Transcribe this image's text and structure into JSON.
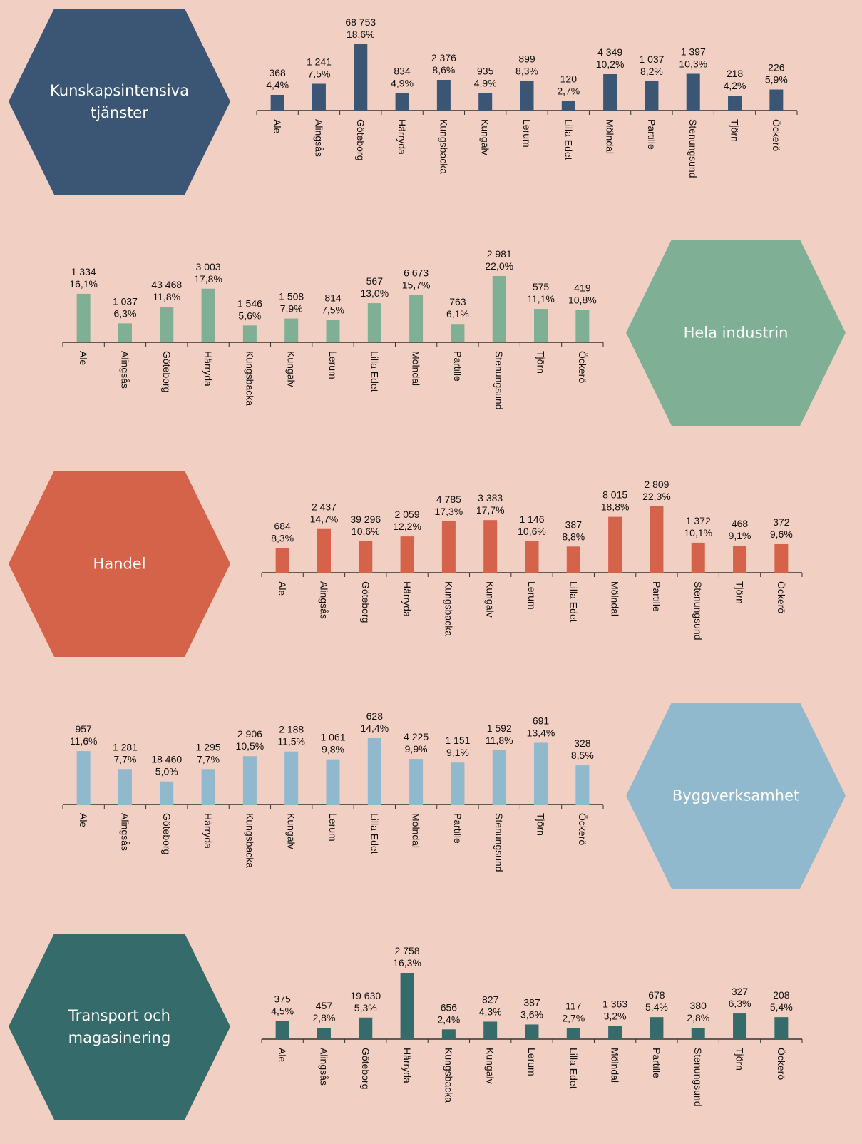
{
  "chart_data": [
    {
      "type": "bar",
      "title": [
        "Kunskapsintensiva",
        "tjänster"
      ],
      "color": "#3a5674",
      "categories": [
        "Ale",
        "Alingsås",
        "Göteborg",
        "Härryda",
        "Kungsbacka",
        "Kungälv",
        "Lerum",
        "Lilla Edet",
        "Mölndal",
        "Partille",
        "Stenungsund",
        "Tjörn",
        "Öckerö"
      ],
      "values": [
        4.4,
        7.5,
        18.6,
        4.9,
        8.6,
        4.9,
        8.3,
        2.7,
        10.2,
        8.2,
        10.3,
        4.2,
        5.9
      ],
      "value_labels": [
        "4,4%",
        "7,5%",
        "18,6%",
        "4,9%",
        "8,6%",
        "4,9%",
        "8,3%",
        "2,7%",
        "10,2%",
        "8,2%",
        "10,3%",
        "4,2%",
        "5,9%"
      ],
      "counts": [
        368,
        1241,
        68753,
        834,
        2376,
        935,
        899,
        120,
        4349,
        1037,
        1397,
        218,
        226
      ],
      "count_labels": [
        "368",
        "1 241",
        "68 753",
        "834",
        "2 376",
        "935",
        "899",
        "120",
        "4 349",
        "1 037",
        "1 397",
        "218",
        "226"
      ]
    },
    {
      "type": "bar",
      "title": [
        "Hela industrin"
      ],
      "color": "#7fb096",
      "categories": [
        "Ale",
        "Alingsås",
        "Göteborg",
        "Härryda",
        "Kungsbacka",
        "Kungälv",
        "Lerum",
        "Lilla Edet",
        "Mölndal",
        "Partille",
        "Stenungsund",
        "Tjörn",
        "Öckerö"
      ],
      "values": [
        16.1,
        6.3,
        11.8,
        17.8,
        5.6,
        7.9,
        7.5,
        13.0,
        15.7,
        6.1,
        22.0,
        11.1,
        10.8
      ],
      "value_labels": [
        "16,1%",
        "6,3%",
        "11,8%",
        "17,8%",
        "5,6%",
        "7,9%",
        "7,5%",
        "13,0%",
        "15,7%",
        "6,1%",
        "22,0%",
        "11,1%",
        "10,8%"
      ],
      "counts": [
        1334,
        1037,
        43468,
        3003,
        1546,
        1508,
        814,
        567,
        6673,
        763,
        2981,
        575,
        419
      ],
      "count_labels": [
        "1 334",
        "1 037",
        "43 468",
        "3 003",
        "1 546",
        "1 508",
        "814",
        "567",
        "6 673",
        "763",
        "2 981",
        "575",
        "419"
      ]
    },
    {
      "type": "bar",
      "title": [
        "Handel"
      ],
      "color": "#d5634a",
      "categories": [
        "Ale",
        "Alingsås",
        "Göteborg",
        "Härryda",
        "Kungsbacka",
        "Kungälv",
        "Lerum",
        "Lilla Edet",
        "Mölndal",
        "Partille",
        "Stenungsund",
        "Tjörn",
        "Öckerö"
      ],
      "values": [
        8.3,
        14.7,
        10.6,
        12.2,
        17.3,
        17.7,
        10.6,
        8.8,
        18.8,
        22.3,
        10.1,
        9.1,
        9.6
      ],
      "value_labels": [
        "8,3%",
        "14,7%",
        "10,6%",
        "12,2%",
        "17,3%",
        "17,7%",
        "10,6%",
        "8,8%",
        "18,8%",
        "22,3%",
        "10,1%",
        "9,1%",
        "9,6%"
      ],
      "counts": [
        684,
        2437,
        39296,
        2059,
        4785,
        3383,
        1146,
        387,
        8015,
        2809,
        1372,
        468,
        372
      ],
      "count_labels": [
        "684",
        "2 437",
        "39 296",
        "2 059",
        "4 785",
        "3 383",
        "1 146",
        "387",
        "8 015",
        "2 809",
        "1 372",
        "468",
        "372"
      ]
    },
    {
      "type": "bar",
      "title": [
        "Byggverksamhet"
      ],
      "color": "#90b9ce",
      "categories": [
        "Ale",
        "Alingsås",
        "Göteborg",
        "Härryda",
        "Kungsbacka",
        "Kungälv",
        "Lerum",
        "Lilla Edet",
        "Mölndal",
        "Partille",
        "Stenungsund",
        "Tjörn",
        "Öckerö"
      ],
      "values": [
        11.6,
        7.7,
        5.0,
        7.7,
        10.5,
        11.5,
        9.8,
        14.4,
        9.9,
        9.1,
        11.8,
        13.4,
        8.5
      ],
      "value_labels": [
        "11,6%",
        "7,7%",
        "5,0%",
        "7,7%",
        "10,5%",
        "11,5%",
        "9,8%",
        "14,4%",
        "9,9%",
        "9,1%",
        "11,8%",
        "13,4%",
        "8,5%"
      ],
      "counts": [
        957,
        1281,
        18460,
        1295,
        2906,
        2188,
        1061,
        628,
        4225,
        1151,
        1592,
        691,
        328
      ],
      "count_labels": [
        "957",
        "1 281",
        "18 460",
        "1 295",
        "2 906",
        "2 188",
        "1 061",
        "628",
        "4 225",
        "1 151",
        "1 592",
        "691",
        "328"
      ]
    },
    {
      "type": "bar",
      "title": [
        "Transport och",
        "magasinering"
      ],
      "color": "#356b6a",
      "categories": [
        "Ale",
        "Alingsås",
        "Göteborg",
        "Härryda",
        "Kungsbacka",
        "Kungälv",
        "Lerum",
        "Lilla Edet",
        "Mölndal",
        "Partille",
        "Stenungsund",
        "Tjörn",
        "Öckerö"
      ],
      "values": [
        4.5,
        2.8,
        5.3,
        16.3,
        2.4,
        4.3,
        3.6,
        2.7,
        3.2,
        5.4,
        2.8,
        6.3,
        5.4
      ],
      "value_labels": [
        "4,5%",
        "2,8%",
        "5,3%",
        "16,3%",
        "2,4%",
        "4,3%",
        "3,6%",
        "2,7%",
        "3,2%",
        "5,4%",
        "2,8%",
        "6,3%",
        "5,4%"
      ],
      "counts": [
        375,
        457,
        19630,
        2758,
        656,
        827,
        387,
        117,
        1363,
        678,
        380,
        327,
        208
      ],
      "count_labels": [
        "375",
        "457",
        "19 630",
        "2 758",
        "656",
        "827",
        "387",
        "117",
        "1 363",
        "678",
        "380",
        "327",
        "208"
      ]
    }
  ]
}
